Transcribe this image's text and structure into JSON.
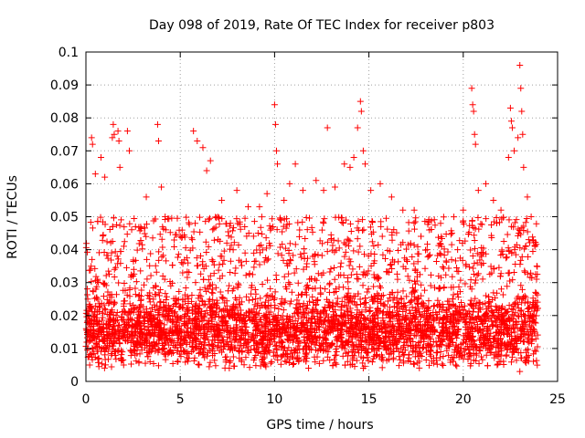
{
  "chart_data": {
    "type": "scatter",
    "title": "Day 098 of 2019, Rate Of TEC Index for receiver p803",
    "xlabel": "GPS time / hours",
    "ylabel": "ROTI / TECUs",
    "xlim": [
      0,
      25
    ],
    "ylim": [
      0,
      0.1
    ],
    "xticks": [
      0,
      5,
      10,
      15,
      20,
      25
    ],
    "yticks": [
      0,
      0.01,
      0.02,
      0.03,
      0.04,
      0.05,
      0.06,
      0.07,
      0.08,
      0.09,
      0.1
    ],
    "grid": true,
    "marker": "+",
    "color": "#ff0000",
    "series": [
      {
        "points": [
          [
            0.1,
            0.025
          ],
          [
            0.3,
            0.074
          ],
          [
            0.35,
            0.072
          ],
          [
            0.5,
            0.063
          ],
          [
            0.8,
            0.068
          ],
          [
            1.0,
            0.062
          ],
          [
            1.4,
            0.074
          ],
          [
            1.45,
            0.078
          ],
          [
            1.5,
            0.075
          ],
          [
            1.7,
            0.076
          ],
          [
            1.75,
            0.073
          ],
          [
            1.8,
            0.065
          ],
          [
            2.2,
            0.076
          ],
          [
            2.3,
            0.07
          ],
          [
            3.2,
            0.056
          ],
          [
            3.8,
            0.078
          ],
          [
            3.85,
            0.073
          ],
          [
            4.0,
            0.059
          ],
          [
            4.2,
            0.05
          ],
          [
            5.0,
            0.044
          ],
          [
            5.7,
            0.076
          ],
          [
            5.9,
            0.073
          ],
          [
            6.2,
            0.071
          ],
          [
            6.4,
            0.064
          ],
          [
            6.6,
            0.067
          ],
          [
            7.2,
            0.055
          ],
          [
            8.0,
            0.058
          ],
          [
            8.6,
            0.053
          ],
          [
            9.2,
            0.053
          ],
          [
            9.6,
            0.057
          ],
          [
            10.0,
            0.084
          ],
          [
            10.05,
            0.078
          ],
          [
            10.1,
            0.07
          ],
          [
            10.15,
            0.066
          ],
          [
            10.5,
            0.055
          ],
          [
            10.8,
            0.06
          ],
          [
            11.1,
            0.066
          ],
          [
            11.5,
            0.058
          ],
          [
            12.2,
            0.061
          ],
          [
            12.6,
            0.058
          ],
          [
            12.8,
            0.077
          ],
          [
            13.2,
            0.059
          ],
          [
            13.7,
            0.066
          ],
          [
            14.0,
            0.065
          ],
          [
            14.2,
            0.068
          ],
          [
            14.4,
            0.077
          ],
          [
            14.55,
            0.085
          ],
          [
            14.6,
            0.082
          ],
          [
            14.7,
            0.07
          ],
          [
            14.8,
            0.066
          ],
          [
            15.1,
            0.058
          ],
          [
            15.6,
            0.06
          ],
          [
            16.2,
            0.056
          ],
          [
            16.8,
            0.052
          ],
          [
            17.4,
            0.052
          ],
          [
            18.2,
            0.046
          ],
          [
            18.8,
            0.048
          ],
          [
            19.4,
            0.045
          ],
          [
            20.0,
            0.052
          ],
          [
            20.45,
            0.089
          ],
          [
            20.5,
            0.084
          ],
          [
            20.55,
            0.082
          ],
          [
            20.6,
            0.075
          ],
          [
            20.65,
            0.072
          ],
          [
            20.8,
            0.058
          ],
          [
            21.2,
            0.06
          ],
          [
            21.6,
            0.055
          ],
          [
            22.0,
            0.052
          ],
          [
            22.4,
            0.068
          ],
          [
            22.5,
            0.083
          ],
          [
            22.55,
            0.079
          ],
          [
            22.6,
            0.077
          ],
          [
            22.7,
            0.07
          ],
          [
            22.9,
            0.074
          ],
          [
            23.0,
            0.096
          ],
          [
            23.05,
            0.089
          ],
          [
            23.1,
            0.082
          ],
          [
            23.15,
            0.075
          ],
          [
            23.2,
            0.065
          ],
          [
            23.4,
            0.056
          ],
          [
            23.6,
            0.05
          ],
          [
            23.8,
            0.041
          ],
          [
            23.9,
            0.035
          ],
          [
            0.2,
            0.005
          ],
          [
            2.0,
            0.005
          ],
          [
            3.4,
            0.006
          ],
          [
            6.0,
            0.005
          ],
          [
            7.6,
            0.004
          ],
          [
            9.5,
            0.005
          ],
          [
            11.8,
            0.004
          ],
          [
            14.7,
            0.004
          ],
          [
            17.2,
            0.006
          ],
          [
            19.6,
            0.005
          ],
          [
            21.8,
            0.005
          ],
          [
            23.0,
            0.003
          ]
        ]
      }
    ]
  }
}
